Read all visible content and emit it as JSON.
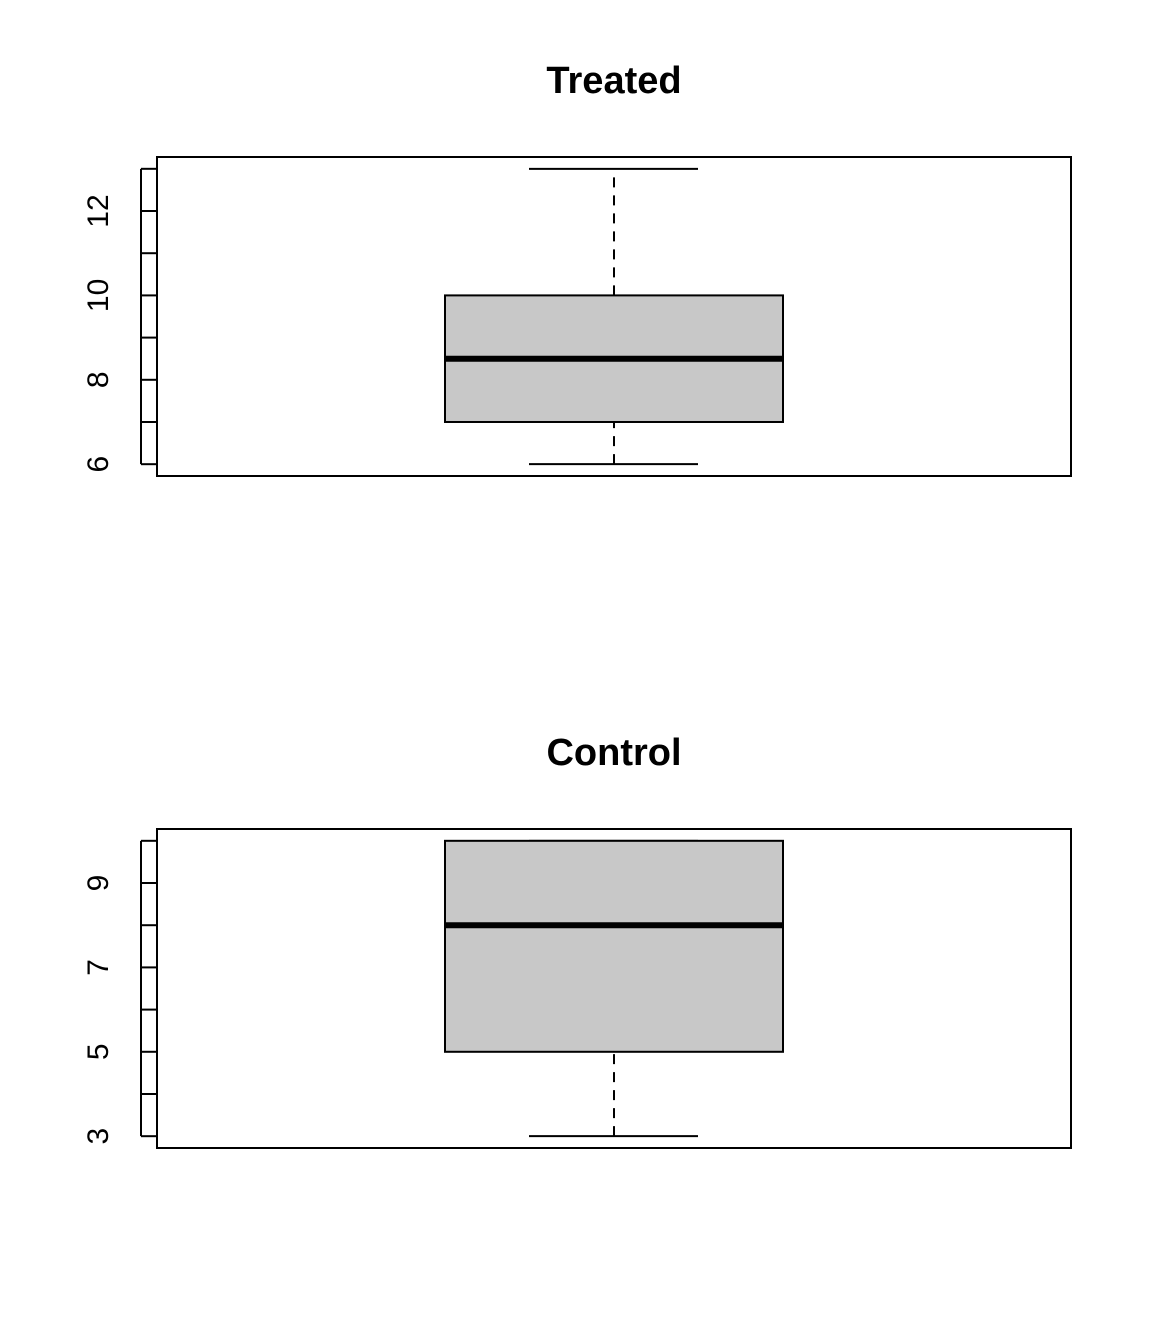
{
  "chart_data": [
    {
      "type": "boxplot",
      "title": "Treated",
      "xlabel": "",
      "ylabel": "",
      "ylim": [
        5.72,
        13.28
      ],
      "yticks": [
        6,
        7,
        8,
        9,
        10,
        11,
        12,
        13
      ],
      "ytick_labels": [
        "6",
        "8",
        "10",
        "12"
      ],
      "labeled_ticks": [
        6,
        8,
        10,
        12
      ],
      "box": {
        "min": 6,
        "q1": 7,
        "median": 8.5,
        "q3": 10,
        "max": 13
      },
      "fill_color": "#c8c8c8",
      "grid": false
    },
    {
      "type": "boxplot",
      "title": "Control",
      "xlabel": "",
      "ylabel": "",
      "ylim": [
        2.72,
        10.28
      ],
      "yticks": [
        3,
        4,
        5,
        6,
        7,
        8,
        9,
        10
      ],
      "ytick_labels": [
        "3",
        "5",
        "7",
        "9"
      ],
      "labeled_ticks": [
        3,
        5,
        7,
        9
      ],
      "box": {
        "min": 3,
        "q1": 5,
        "median": 8,
        "q3": 10,
        "max": 10
      },
      "fill_color": "#c8c8c8",
      "grid": false
    }
  ]
}
